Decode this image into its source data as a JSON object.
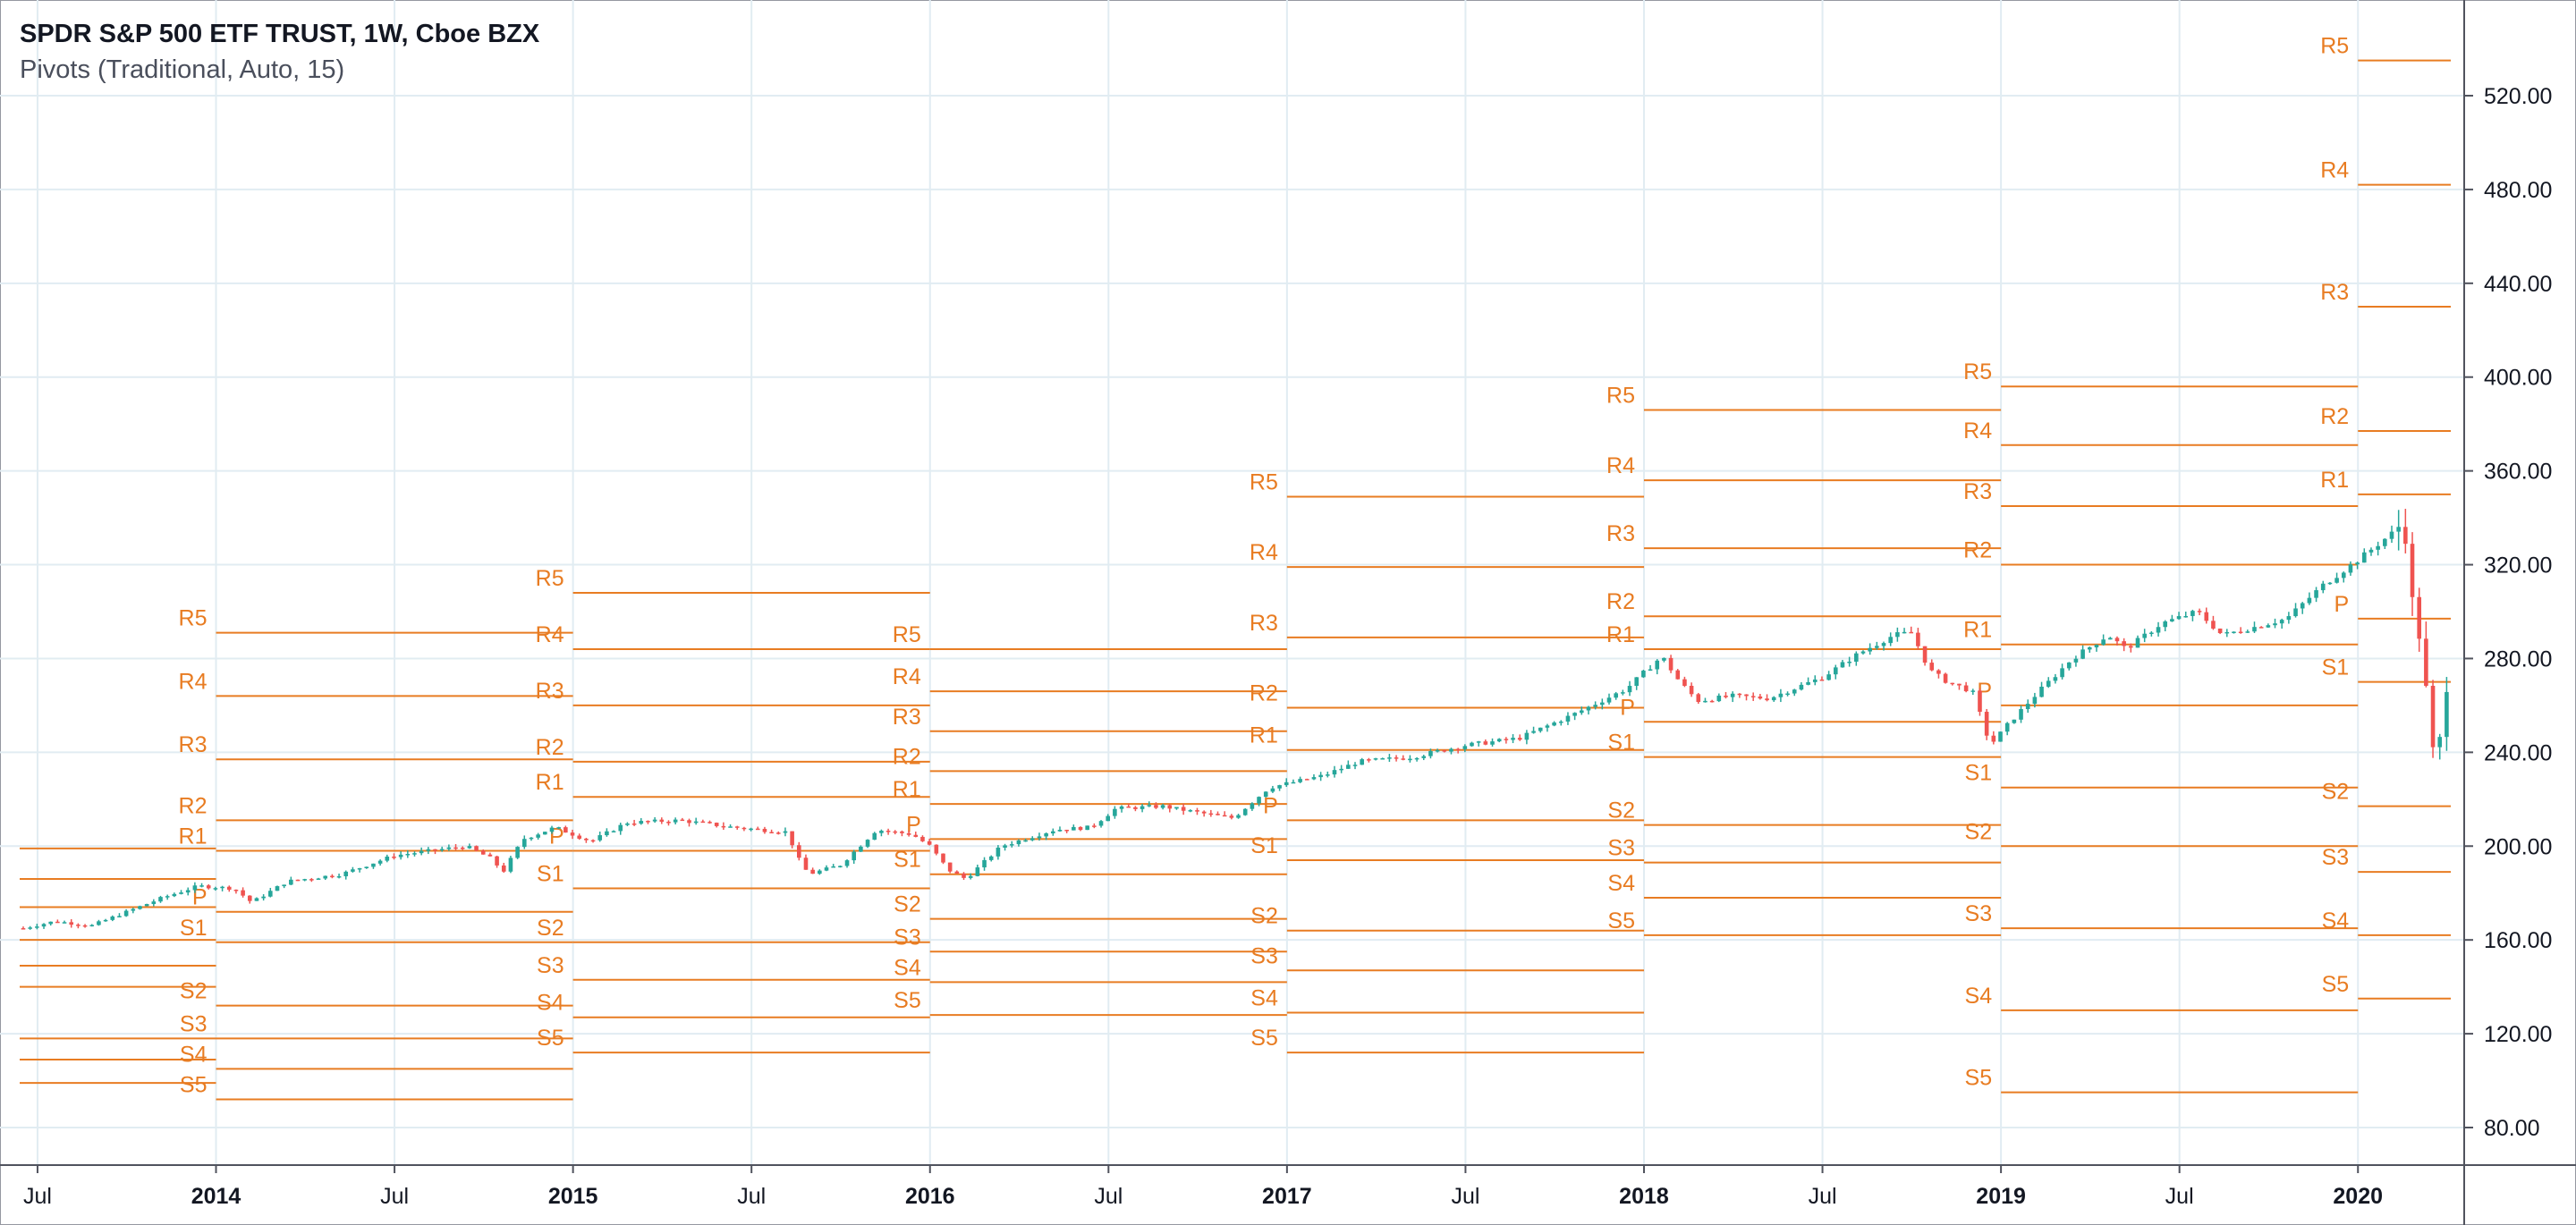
{
  "header": {
    "title": "SPDR S&P 500 ETF TRUST, 1W, Cboe BZX",
    "subtitle": "Pivots (Traditional, Auto, 15)"
  },
  "colors": {
    "up": "#26a69a",
    "down": "#ef5350",
    "pivot": "#e87c22",
    "grid": "#e1ecf2"
  },
  "chart_data": {
    "type": "candlestick",
    "title": "SPDR S&P 500 ETF TRUST, 1W, Cboe BZX",
    "indicator": "Pivots (Traditional, Auto, 15)",
    "ylim": [
      70,
      550
    ],
    "y_ticks": [
      "80.00",
      "120.00",
      "160.00",
      "200.00",
      "240.00",
      "280.00",
      "320.00",
      "360.00",
      "400.00",
      "440.00",
      "480.00",
      "520.00"
    ],
    "x_ticks": [
      {
        "label": "Jul",
        "t": 2013.5,
        "bold": false
      },
      {
        "label": "2014",
        "t": 2014.0,
        "bold": true
      },
      {
        "label": "Jul",
        "t": 2014.5,
        "bold": false
      },
      {
        "label": "2015",
        "t": 2015.0,
        "bold": true
      },
      {
        "label": "Jul",
        "t": 2015.5,
        "bold": false
      },
      {
        "label": "2016",
        "t": 2016.0,
        "bold": true
      },
      {
        "label": "Jul",
        "t": 2016.5,
        "bold": false
      },
      {
        "label": "2017",
        "t": 2017.0,
        "bold": true
      },
      {
        "label": "Jul",
        "t": 2017.5,
        "bold": false
      },
      {
        "label": "2018",
        "t": 2018.0,
        "bold": true
      },
      {
        "label": "Jul",
        "t": 2018.5,
        "bold": false
      },
      {
        "label": "2019",
        "t": 2019.0,
        "bold": true
      },
      {
        "label": "Jul",
        "t": 2019.5,
        "bold": false
      },
      {
        "label": "2020",
        "t": 2020.0,
        "bold": true
      }
    ],
    "x_range": [
      2013.45,
      2020.26
    ],
    "price_path": [
      [
        2013.46,
        165
      ],
      [
        2013.55,
        168
      ],
      [
        2013.65,
        166
      ],
      [
        2013.75,
        172
      ],
      [
        2013.85,
        178
      ],
      [
        2013.95,
        183
      ],
      [
        2014.05,
        182
      ],
      [
        2014.1,
        176
      ],
      [
        2014.2,
        185
      ],
      [
        2014.35,
        188
      ],
      [
        2014.5,
        196
      ],
      [
        2014.6,
        198
      ],
      [
        2014.7,
        200
      ],
      [
        2014.78,
        194
      ],
      [
        2014.8,
        188
      ],
      [
        2014.86,
        203
      ],
      [
        2014.95,
        208
      ],
      [
        2015.0,
        205
      ],
      [
        2015.05,
        202
      ],
      [
        2015.15,
        210
      ],
      [
        2015.3,
        211
      ],
      [
        2015.45,
        208
      ],
      [
        2015.6,
        206
      ],
      [
        2015.63,
        195
      ],
      [
        2015.66,
        188
      ],
      [
        2015.75,
        192
      ],
      [
        2015.85,
        207
      ],
      [
        2015.95,
        205
      ],
      [
        2016.0,
        200
      ],
      [
        2016.05,
        190
      ],
      [
        2016.1,
        186
      ],
      [
        2016.2,
        200
      ],
      [
        2016.35,
        207
      ],
      [
        2016.45,
        208
      ],
      [
        2016.52,
        216
      ],
      [
        2016.65,
        217
      ],
      [
        2016.8,
        213
      ],
      [
        2016.85,
        212
      ],
      [
        2016.95,
        225
      ],
      [
        2017.1,
        230
      ],
      [
        2017.2,
        236
      ],
      [
        2017.35,
        238
      ],
      [
        2017.5,
        243
      ],
      [
        2017.65,
        246
      ],
      [
        2017.8,
        256
      ],
      [
        2017.95,
        267
      ],
      [
        2018.05,
        281
      ],
      [
        2018.1,
        270
      ],
      [
        2018.15,
        262
      ],
      [
        2018.25,
        264
      ],
      [
        2018.35,
        263
      ],
      [
        2018.5,
        272
      ],
      [
        2018.6,
        282
      ],
      [
        2018.7,
        290
      ],
      [
        2018.75,
        291
      ],
      [
        2018.8,
        275
      ],
      [
        2018.85,
        270
      ],
      [
        2018.92,
        266
      ],
      [
        2018.97,
        243
      ],
      [
        2019.02,
        252
      ],
      [
        2019.1,
        265
      ],
      [
        2019.2,
        280
      ],
      [
        2019.3,
        290
      ],
      [
        2019.35,
        284
      ],
      [
        2019.45,
        295
      ],
      [
        2019.55,
        300
      ],
      [
        2019.62,
        290
      ],
      [
        2019.7,
        293
      ],
      [
        2019.8,
        297
      ],
      [
        2019.9,
        311
      ],
      [
        2020.0,
        322
      ],
      [
        2020.1,
        334
      ],
      [
        2020.13,
        339
      ],
      [
        2020.15,
        305
      ],
      [
        2020.18,
        285
      ],
      [
        2020.2,
        250
      ],
      [
        2020.22,
        230
      ],
      [
        2020.24,
        262
      ],
      [
        2020.26,
        280
      ]
    ],
    "pivot_periods": [
      {
        "x_start": 2013.45,
        "x_end": 2014.0,
        "levels": {
          "R5": 199,
          "R4": 186,
          "R3": 174,
          "R2": 160,
          "R1": 149,
          "S2": 140,
          "S3": 118,
          "S4": 109,
          "S5": 99
        }
      },
      {
        "x_start": 2014.0,
        "x_end": 2015.0,
        "levels": {
          "R5": 291,
          "R4": 264,
          "R3": 237,
          "R2": 211,
          "R1": 198,
          "P": 172,
          "S1": 159,
          "S2": 132,
          "S3": 118,
          "S4": 105,
          "S5": 92
        }
      },
      {
        "x_start": 2015.0,
        "x_end": 2016.0,
        "levels": {
          "R5": 308,
          "R4": 284,
          "R3": 260,
          "R2": 236,
          "R1": 221,
          "P": 198,
          "S1": 182,
          "S2": 159,
          "S3": 143,
          "S4": 127,
          "S5": 112
        }
      },
      {
        "x_start": 2016.0,
        "x_end": 2017.0,
        "levels": {
          "R5": 284,
          "R4": 266,
          "R3": 249,
          "R2": 232,
          "R1": 218,
          "P": 203,
          "S1": 188,
          "S2": 169,
          "S3": 155,
          "S4": 142,
          "S5": 128
        }
      },
      {
        "x_start": 2017.0,
        "x_end": 2018.0,
        "levels": {
          "R5": 349,
          "R4": 319,
          "R3": 289,
          "R2": 259,
          "R1": 241,
          "P": 211,
          "S1": 194,
          "S2": 164,
          "S3": 147,
          "S4": 129,
          "S5": 112
        }
      },
      {
        "x_start": 2018.0,
        "x_end": 2019.0,
        "levels": {
          "R5": 386,
          "R4": 356,
          "R3": 327,
          "R2": 298,
          "R1": 284,
          "P": 253,
          "S1": 238,
          "S2": 209,
          "S3": 193,
          "S4": 178,
          "S5": 162
        }
      },
      {
        "x_start": 2019.0,
        "x_end": 2020.0,
        "levels": {
          "R5": 396,
          "R4": 371,
          "R3": 345,
          "R2": 320,
          "R1": 286,
          "P": 260,
          "S1": 225,
          "S2": 200,
          "S3": 165,
          "S4": 130,
          "S5": 95
        }
      },
      {
        "x_start": 2020.0,
        "x_end": 2020.26,
        "levels": {
          "R5": 535,
          "R4": 482,
          "R3": 430,
          "R2": 377,
          "R1": 350,
          "P": 297,
          "S1": 270,
          "S2": 217,
          "S3": 189,
          "S4": 162,
          "S5": 135
        }
      }
    ]
  }
}
